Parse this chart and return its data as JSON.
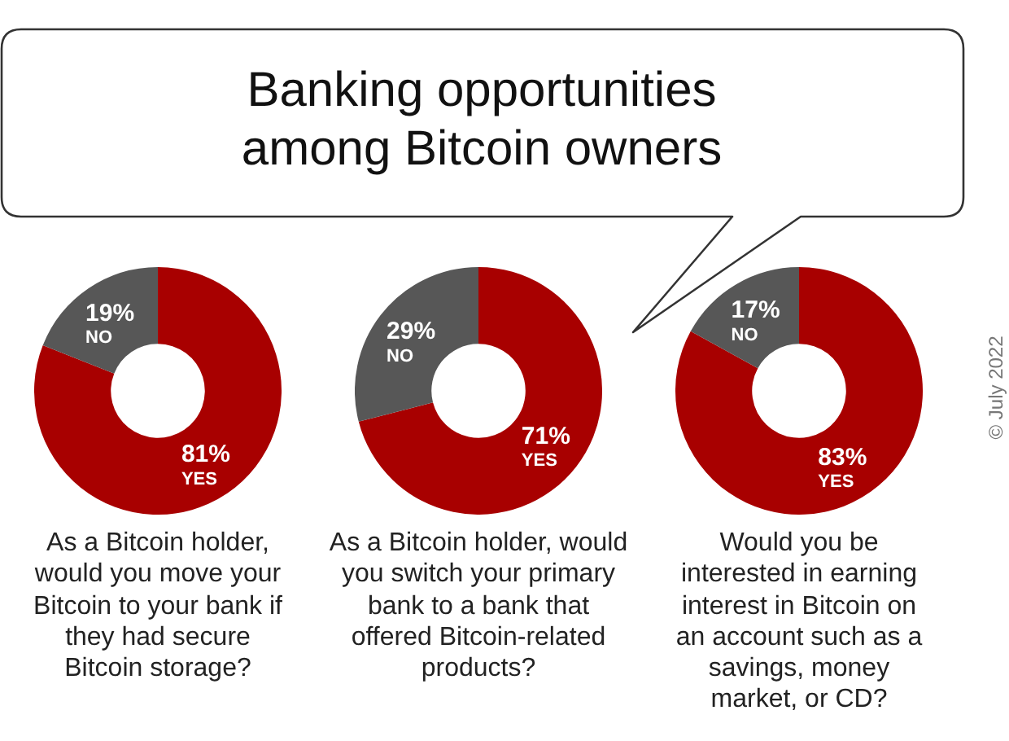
{
  "chart_data": [
    {
      "type": "donut",
      "categories": [
        "YES",
        "NO"
      ],
      "values": [
        81,
        19
      ],
      "value_labels": [
        "81%",
        "19%"
      ],
      "colors": [
        "#a80000",
        "#575757"
      ],
      "xlabel": "As a Bitcoin holder, would you move your Bitcoin to your bank if they had secure Bitcoin storage?"
    },
    {
      "type": "donut",
      "title": "Banking opportunities among Bitcoin owners",
      "categories": [
        "YES",
        "NO"
      ],
      "values": [
        71,
        29
      ],
      "value_labels": [
        "71%",
        "29%"
      ],
      "colors": [
        "#a80000",
        "#575757"
      ],
      "xlabel": "As a Bitcoin holder, would you switch your primary bank to a bank that offered Bitcoin-related products?"
    },
    {
      "type": "donut",
      "categories": [
        "YES",
        "NO"
      ],
      "values": [
        83,
        17
      ],
      "value_labels": [
        "83%",
        "17%"
      ],
      "colors": [
        "#a80000",
        "#575757"
      ],
      "xlabel": "Would you be interested in earning interest in Bitcoin on an account such as a savings, money market, or CD?",
      "annotations": [
        "© July 2022"
      ]
    }
  ]
}
